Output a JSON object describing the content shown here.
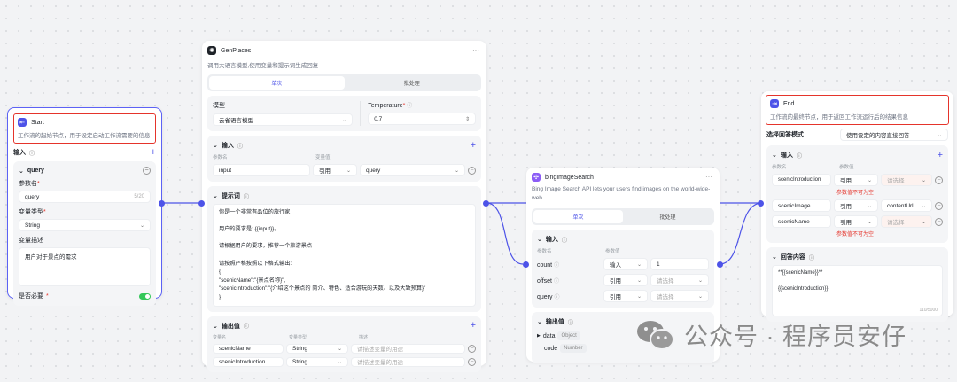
{
  "start": {
    "title": "Start",
    "desc": "工作流的起始节点，用于设定启动工作流需要的信息",
    "input_label": "输入",
    "param": {
      "name": "query",
      "name_label": "参数名",
      "name_value": "query",
      "count": "5/20",
      "type_label": "变量类型",
      "type_value": "String",
      "desc_label": "变量描述",
      "desc_value": "用户对于景点的需求",
      "required_label": "是否必要",
      "required": true
    }
  },
  "gen": {
    "title": "GenPlaces",
    "desc": "调用大语言模型,使用变量和提示词生成回复",
    "tabs": [
      "单次",
      "批处理"
    ],
    "model_label": "模型",
    "model_value": "云雀语言模型",
    "temp_label": "Temperature",
    "temp_value": "0.7",
    "input_label": "输入",
    "col_name": "参数名",
    "col_value": "变量值",
    "inputs": [
      {
        "name": "input",
        "mode": "引用",
        "value": "query"
      }
    ],
    "prompt_label": "提示词",
    "prompt_lines": [
      "你是一个非常有品位的旅行家",
      "",
      "用户的要求是: {{input}}。",
      "",
      "请根据用户的要求，推荐一个旅游景点",
      "",
      "请按照严格按照以下格式输出:",
      "{",
      "\"scenicName\":\"{景点名称}\",",
      "\"scenicIntroduction\":\"{介绍这个景点的 简介、特色、适合游玩的天数、以及大致预算}\"",
      "}"
    ],
    "output_label": "输出值",
    "out_cols": [
      "变量名",
      "变量类型",
      "描述"
    ],
    "outputs": [
      {
        "name": "scenicName",
        "type": "String",
        "placeholder": "请描述变量的用途"
      },
      {
        "name": "scenicIntroduction",
        "type": "String",
        "placeholder": "请描述变量的用途"
      }
    ]
  },
  "bing": {
    "title": "bingImageSearch",
    "desc": "Bing Image Search API lets your users find images on the world-wide-web",
    "tabs": [
      "单次",
      "批处理"
    ],
    "input_label": "输入",
    "col_name": "参数名",
    "col_value": "参数值",
    "inputs": [
      {
        "name": "count",
        "mode": "输入",
        "value": "1"
      },
      {
        "name": "offset",
        "mode": "引用",
        "placeholder": "请选择"
      },
      {
        "name": "query",
        "mode": "引用",
        "placeholder": "请选择"
      }
    ],
    "output_label": "输出值",
    "outputs": [
      {
        "name": "data",
        "type": "Object"
      },
      {
        "name": "code",
        "type": "Number"
      }
    ]
  },
  "end": {
    "title": "End",
    "desc": "工作流的最终节点，用于返回工作流运行后的结果信息",
    "mode_label": "选择回答模式",
    "mode_value": "使用设定的内容直接回答",
    "input_label": "输入",
    "col_name": "参数名",
    "col_value": "参数值",
    "inputs": [
      {
        "name": "scenicIntroduction",
        "mode": "引用",
        "placeholder": "请选择",
        "error": "参数值不可为空"
      },
      {
        "name": "scenicImage",
        "mode": "引用",
        "value": "contentUrl"
      },
      {
        "name": "scenicName",
        "mode": "引用",
        "placeholder": "请选择",
        "error": "参数值不可为空"
      }
    ],
    "answer_label": "回答内容",
    "answer_lines": [
      "**{{scenicName}}**",
      "",
      "{{scenicIntroduction}}"
    ],
    "answer_count": "110/5000"
  },
  "watermark": "公众号 · 程序员安仔",
  "colors": {
    "accent": "#4d53e8",
    "error": "#e5342b",
    "toggle": "#34c759"
  }
}
